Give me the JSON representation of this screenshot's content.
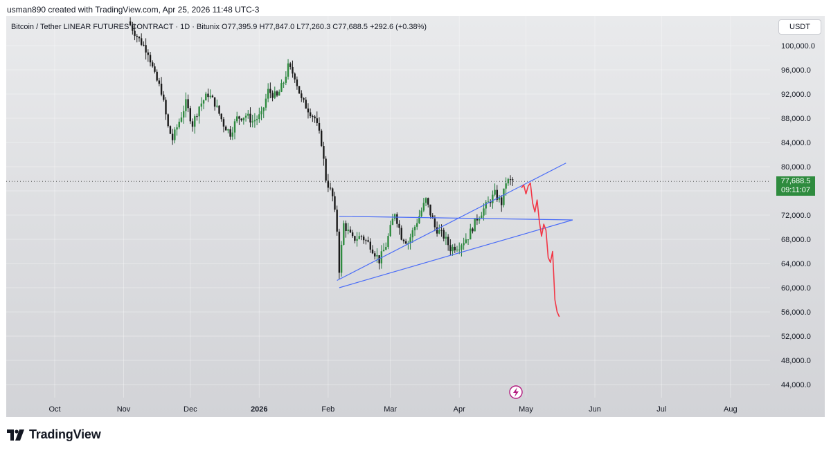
{
  "header": {
    "attribution": "usman890 created with TradingView.com, Apr 25, 2026 11:48 UTC-3"
  },
  "legend": {
    "symbol": "Bitcoin / Tether LINEAR FUTURES CONTRACT · 1D · Bitunix",
    "open": "O77,395.9",
    "high": "H77,847.0",
    "low": "L77,260.3",
    "close": "C77,688.5",
    "change": "+292.6 (+0.38%)"
  },
  "currency_button": "USDT",
  "last_price": {
    "price": "77,688.5",
    "countdown": "09:11:07",
    "value": 77688.5,
    "color": "#2e8b3e"
  },
  "footer": {
    "brand": "TradingView"
  },
  "chart_data": {
    "type": "candlestick",
    "title": "Bitcoin / Tether LINEAR FUTURES CONTRACT · 1D · Bitunix",
    "ylim": [
      41000,
      104000
    ],
    "y_ticks": [
      "100,000.0",
      "96,000.0",
      "92,000.0",
      "88,000.0",
      "84,000.0",
      "80,000.0",
      "76,000.0",
      "72,000.0",
      "68,000.0",
      "64,000.0",
      "60,000.0",
      "56,000.0",
      "52,000.0",
      "48,000.0",
      "44,000.0"
    ],
    "y_tick_values": [
      100000,
      96000,
      92000,
      88000,
      84000,
      80000,
      76000,
      72000,
      68000,
      64000,
      60000,
      56000,
      52000,
      48000,
      44000
    ],
    "x_ticks": [
      {
        "label": "Oct",
        "date": "2025-10-01",
        "bold": false
      },
      {
        "label": "Nov",
        "date": "2025-11-01",
        "bold": false
      },
      {
        "label": "Dec",
        "date": "2025-12-01",
        "bold": false
      },
      {
        "label": "2026",
        "date": "2026-01-01",
        "bold": true
      },
      {
        "label": "Feb",
        "date": "2026-02-01",
        "bold": false
      },
      {
        "label": "Mar",
        "date": "2026-03-01",
        "bold": false
      },
      {
        "label": "Apr",
        "date": "2026-04-01",
        "bold": false
      },
      {
        "label": "May",
        "date": "2026-05-01",
        "bold": false
      },
      {
        "label": "Jun",
        "date": "2026-06-01",
        "bold": false
      },
      {
        "label": "Jul",
        "date": "2026-07-01",
        "bold": false
      },
      {
        "label": "Aug",
        "date": "2026-08-01",
        "bold": false
      }
    ],
    "price_path": [
      [
        "2025-11-03",
        104000
      ],
      [
        "2025-11-08",
        101000
      ],
      [
        "2025-11-12",
        99000
      ],
      [
        "2025-11-15",
        95000
      ],
      [
        "2025-11-18",
        92500
      ],
      [
        "2025-11-21",
        86500
      ],
      [
        "2025-11-23",
        84500
      ],
      [
        "2025-11-26",
        87500
      ],
      [
        "2025-11-29",
        90500
      ],
      [
        "2025-12-02",
        87000
      ],
      [
        "2025-12-05",
        90000
      ],
      [
        "2025-12-09",
        92000
      ],
      [
        "2025-12-12",
        90500
      ],
      [
        "2025-12-16",
        87000
      ],
      [
        "2025-12-19",
        85500
      ],
      [
        "2025-12-22",
        88000
      ],
      [
        "2025-12-26",
        88500
      ],
      [
        "2025-12-29",
        87500
      ],
      [
        "2026-01-02",
        88500
      ],
      [
        "2026-01-05",
        92500
      ],
      [
        "2026-01-09",
        91500
      ],
      [
        "2026-01-12",
        94000
      ],
      [
        "2026-01-14",
        96500
      ],
      [
        "2026-01-17",
        95000
      ],
      [
        "2026-01-20",
        91000
      ],
      [
        "2026-01-23",
        89500
      ],
      [
        "2026-01-26",
        88000
      ],
      [
        "2026-01-29",
        84000
      ],
      [
        "2026-01-31",
        78000
      ],
      [
        "2026-02-03",
        75000
      ],
      [
        "2026-02-05",
        69500
      ],
      [
        "2026-02-06",
        63000
      ],
      [
        "2026-02-08",
        70500
      ],
      [
        "2026-02-12",
        68000
      ],
      [
        "2026-02-16",
        68500
      ],
      [
        "2026-02-20",
        67000
      ],
      [
        "2026-02-24",
        64500
      ],
      [
        "2026-02-27",
        67000
      ],
      [
        "2026-03-03",
        72500
      ],
      [
        "2026-03-06",
        68500
      ],
      [
        "2026-03-09",
        67500
      ],
      [
        "2026-03-13",
        71000
      ],
      [
        "2026-03-17",
        74500
      ],
      [
        "2026-03-21",
        70000
      ],
      [
        "2026-03-25",
        68500
      ],
      [
        "2026-03-28",
        66500
      ],
      [
        "2026-04-01",
        67000
      ],
      [
        "2026-04-05",
        68500
      ],
      [
        "2026-04-09",
        71500
      ],
      [
        "2026-04-13",
        73500
      ],
      [
        "2026-04-17",
        75500
      ],
      [
        "2026-04-20",
        74000
      ],
      [
        "2026-04-22",
        77500
      ],
      [
        "2026-04-25",
        77688.5
      ]
    ],
    "annotations": [
      {
        "type": "channel-line",
        "color": "#4a6cf7",
        "from": [
          "2026-02-05",
          61200
        ],
        "to": [
          "2026-05-19",
          80600
        ]
      },
      {
        "type": "channel-line",
        "color": "#4a6cf7",
        "from": [
          "2026-02-06",
          71800
        ],
        "to": [
          "2026-05-22",
          71200
        ]
      },
      {
        "type": "channel-line",
        "color": "#4a6cf7",
        "from": [
          "2026-02-06",
          60000
        ],
        "to": [
          "2026-05-22",
          71200
        ]
      },
      {
        "type": "projection",
        "color": "#f23645",
        "points": [
          [
            "2026-04-29",
            76500
          ],
          [
            "2026-04-30",
            77000
          ],
          [
            "2026-05-01",
            75500
          ],
          [
            "2026-05-02",
            76800
          ],
          [
            "2026-05-03",
            77300
          ],
          [
            "2026-05-04",
            74000
          ],
          [
            "2026-05-05",
            72500
          ],
          [
            "2026-05-06",
            74500
          ],
          [
            "2026-05-07",
            71000
          ],
          [
            "2026-05-08",
            68500
          ],
          [
            "2026-05-09",
            70500
          ],
          [
            "2026-05-10",
            69500
          ],
          [
            "2026-05-11",
            65000
          ],
          [
            "2026-05-12",
            64200
          ],
          [
            "2026-05-13",
            66000
          ],
          [
            "2026-05-14",
            58000
          ],
          [
            "2026-05-15",
            56000
          ],
          [
            "2026-05-16",
            55200
          ]
        ]
      }
    ],
    "grid": true,
    "legend_position": "top-left"
  }
}
